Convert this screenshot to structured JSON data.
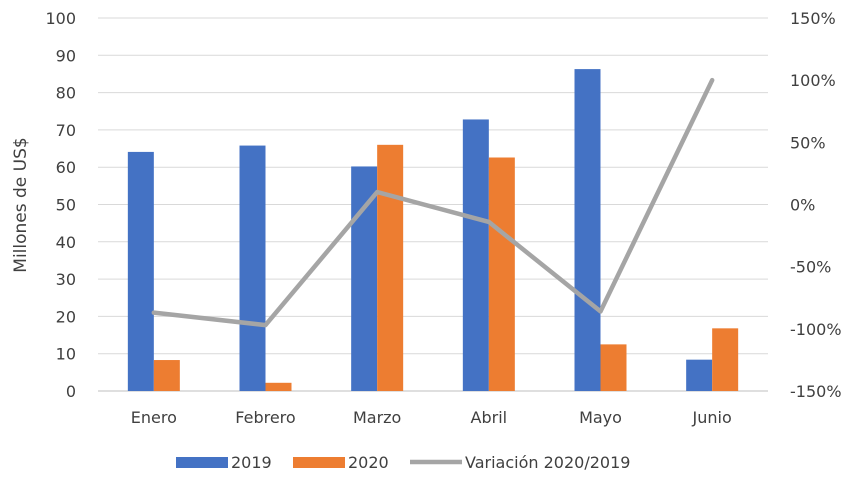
{
  "chart_data": {
    "type": "bar",
    "categories": [
      "Enero",
      "Febrero",
      "Marzo",
      "Abril",
      "Mayo",
      "Junio"
    ],
    "series": [
      {
        "name": "2019",
        "type": "bar",
        "axis": "left",
        "color": "#4472C4",
        "values": [
          64.1,
          65.8,
          60.2,
          72.8,
          86.3,
          8.4
        ]
      },
      {
        "name": "2020",
        "type": "bar",
        "axis": "left",
        "color": "#ED7D31",
        "values": [
          8.3,
          2.2,
          66.0,
          62.6,
          12.5,
          16.8
        ]
      },
      {
        "name": "Variación 2020/2019",
        "type": "line",
        "axis": "right",
        "color": "#A5A5A5",
        "values": [
          -87,
          -97,
          10,
          -14,
          -86,
          100
        ]
      }
    ],
    "y_left": {
      "label": "Millones de US$",
      "range": [
        0,
        100
      ],
      "ticks": [
        "0",
        "10",
        "20",
        "30",
        "40",
        "50",
        "60",
        "70",
        "80",
        "90",
        "100"
      ]
    },
    "y_right": {
      "label": "",
      "range": [
        -150,
        150
      ],
      "ticks": [
        "-150%",
        "-100%",
        "-50%",
        "0%",
        "50%",
        "100%",
        "150%"
      ]
    },
    "grid": true,
    "legend": "bottom"
  }
}
